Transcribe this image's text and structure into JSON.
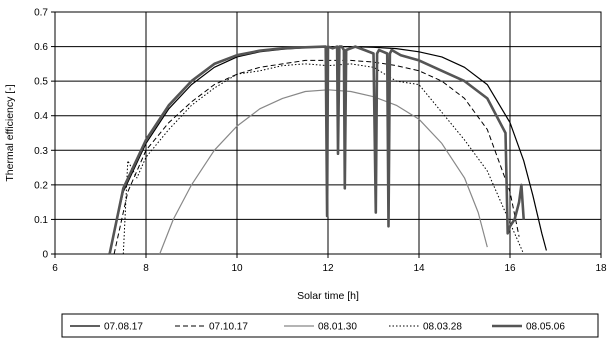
{
  "chart_data": {
    "type": "line",
    "xlabel": "Solar time [h]",
    "ylabel": "Thermal efficiency [-]",
    "xlim": [
      6,
      18
    ],
    "ylim": [
      0,
      0.7
    ],
    "xticks": [
      6,
      8,
      10,
      12,
      14,
      16,
      18
    ],
    "yticks": [
      0,
      0.1,
      0.2,
      0.3,
      0.4,
      0.5,
      0.6,
      0.7
    ],
    "grid": true,
    "legend_placement": "bottom",
    "series": [
      {
        "name": "07.08.17",
        "color": "#000000",
        "style": "solid",
        "x": [
          7.2,
          7.5,
          8.0,
          8.5,
          9.0,
          9.5,
          10.0,
          10.5,
          11.0,
          11.5,
          12.0,
          12.5,
          13.0,
          13.5,
          14.0,
          14.5,
          15.0,
          15.5,
          16.0,
          16.3,
          16.5,
          16.7,
          16.8
        ],
        "y": [
          0.0,
          0.18,
          0.32,
          0.42,
          0.49,
          0.54,
          0.57,
          0.585,
          0.592,
          0.597,
          0.6,
          0.6,
          0.598,
          0.594,
          0.585,
          0.57,
          0.54,
          0.49,
          0.38,
          0.27,
          0.17,
          0.06,
          0.01
        ]
      },
      {
        "name": "07.10.17",
        "color": "#000000",
        "style": "dashed",
        "x": [
          7.3,
          7.6,
          8.0,
          8.5,
          9.0,
          9.5,
          10.0,
          10.5,
          11.0,
          11.5,
          12.0,
          12.5,
          13.0,
          13.5,
          14.0,
          14.5,
          15.0,
          15.5,
          16.0,
          16.2
        ],
        "y": [
          0.0,
          0.18,
          0.3,
          0.38,
          0.44,
          0.49,
          0.52,
          0.54,
          0.55,
          0.56,
          0.56,
          0.56,
          0.555,
          0.545,
          0.53,
          0.5,
          0.45,
          0.36,
          0.18,
          0.05
        ]
      },
      {
        "name": "08.01.30",
        "color": "#888888",
        "style": "solid",
        "x": [
          8.3,
          8.6,
          9.0,
          9.5,
          10.0,
          10.5,
          11.0,
          11.5,
          12.0,
          12.5,
          13.0,
          13.5,
          14.0,
          14.5,
          15.0,
          15.3,
          15.5
        ],
        "y": [
          0.0,
          0.1,
          0.2,
          0.3,
          0.37,
          0.42,
          0.45,
          0.47,
          0.475,
          0.47,
          0.455,
          0.43,
          0.39,
          0.32,
          0.22,
          0.12,
          0.02
        ]
      },
      {
        "name": "08.03.28",
        "color": "#000000",
        "style": "dotted",
        "x": [
          7.5,
          7.6,
          7.8,
          8.0,
          8.5,
          9.0,
          9.5,
          10.0,
          10.5,
          11.0,
          11.5,
          12.0,
          12.5,
          13.0,
          13.5,
          14.0,
          14.5,
          15.0,
          15.5,
          16.0,
          16.3
        ],
        "y": [
          0.0,
          0.27,
          0.22,
          0.28,
          0.36,
          0.43,
          0.48,
          0.52,
          0.53,
          0.545,
          0.55,
          0.545,
          0.55,
          0.54,
          0.5,
          0.49,
          0.41,
          0.33,
          0.24,
          0.09,
          0.0
        ]
      },
      {
        "name": "08.05.06",
        "color": "#555555",
        "style": "thick",
        "x": [
          7.2,
          7.5,
          8.0,
          8.5,
          9.0,
          9.5,
          10.0,
          10.5,
          11.0,
          11.5,
          11.95,
          11.98,
          12.0,
          12.1,
          12.2,
          12.22,
          12.25,
          12.3,
          12.35,
          12.37,
          12.4,
          12.6,
          12.8,
          13.0,
          13.05,
          13.08,
          13.12,
          13.3,
          13.33,
          13.36,
          13.4,
          13.6,
          14.0,
          14.5,
          15.0,
          15.5,
          15.9,
          15.95,
          16.0,
          16.1,
          16.2,
          16.25,
          16.3
        ],
        "y": [
          0.0,
          0.19,
          0.33,
          0.43,
          0.5,
          0.55,
          0.575,
          0.588,
          0.595,
          0.598,
          0.6,
          0.11,
          0.6,
          0.595,
          0.6,
          0.29,
          0.6,
          0.6,
          0.59,
          0.19,
          0.59,
          0.6,
          0.59,
          0.58,
          0.12,
          0.58,
          0.59,
          0.58,
          0.08,
          0.58,
          0.59,
          0.575,
          0.56,
          0.53,
          0.5,
          0.45,
          0.35,
          0.06,
          0.08,
          0.1,
          0.15,
          0.2,
          0.1
        ]
      }
    ]
  }
}
